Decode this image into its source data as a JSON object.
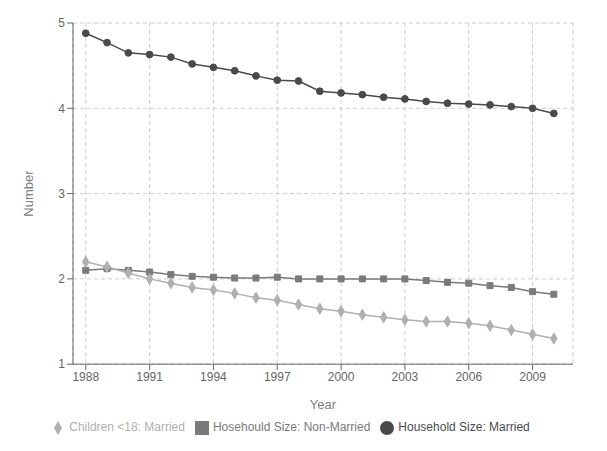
{
  "chart_data": {
    "type": "line",
    "xlabel": "Year",
    "ylabel": "Number",
    "x": [
      1988,
      1989,
      1990,
      1991,
      1992,
      1993,
      1994,
      1995,
      1996,
      1997,
      1998,
      1999,
      2000,
      2001,
      2002,
      2003,
      2004,
      2005,
      2006,
      2007,
      2008,
      2009,
      2010
    ],
    "series": [
      {
        "name": "Household Size: Married",
        "color": "#4a4a4a",
        "marker": "circle",
        "values": [
          4.88,
          4.77,
          4.65,
          4.63,
          4.6,
          4.52,
          4.48,
          4.44,
          4.38,
          4.33,
          4.32,
          4.2,
          4.18,
          4.16,
          4.13,
          4.11,
          4.08,
          4.06,
          4.05,
          4.04,
          4.02,
          4.0,
          3.94
        ]
      },
      {
        "name": "Hosehould Size: Non-Married",
        "color": "#7a7a7a",
        "marker": "square",
        "values": [
          2.1,
          2.12,
          2.1,
          2.08,
          2.05,
          2.03,
          2.02,
          2.01,
          2.01,
          2.02,
          2.0,
          2.0,
          2.0,
          2.0,
          2.0,
          2.0,
          1.98,
          1.96,
          1.95,
          1.92,
          1.9,
          1.85,
          1.82
        ]
      },
      {
        "name": "Children <18: Married",
        "color": "#b0b0b0",
        "marker": "diamond",
        "values": [
          2.2,
          2.14,
          2.07,
          2.0,
          1.95,
          1.9,
          1.87,
          1.83,
          1.78,
          1.75,
          1.7,
          1.65,
          1.62,
          1.58,
          1.55,
          1.52,
          1.5,
          1.5,
          1.48,
          1.45,
          1.4,
          1.35,
          1.3
        ]
      }
    ],
    "xlim": [
      1987.4,
      2010.9
    ],
    "xticks": [
      1988,
      1991,
      1994,
      1997,
      2000,
      2003,
      2006,
      2009
    ],
    "ylim": [
      1,
      5
    ],
    "yticks": [
      1,
      2,
      3,
      4,
      5
    ],
    "grid": true,
    "legend": "bottom"
  }
}
